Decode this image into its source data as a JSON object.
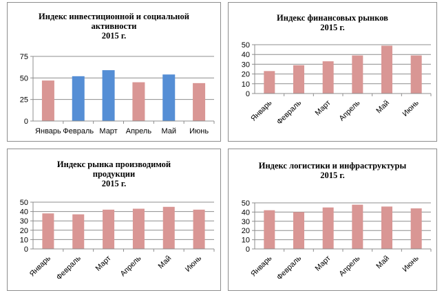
{
  "chart_data": [
    {
      "type": "bar",
      "title": [
        "Индекс инвестиционной и социальной",
        "активности",
        "2015 г."
      ],
      "categories": [
        "Январь",
        "Февраль",
        "Март",
        "Апрель",
        "Май",
        "Июнь"
      ],
      "values": [
        47,
        52,
        59,
        45,
        54,
        44
      ],
      "bar_colors": [
        "#d99694",
        "#558ed5",
        "#558ed5",
        "#d99694",
        "#558ed5",
        "#d99694"
      ],
      "ylim": [
        0,
        75
      ],
      "yticks": [
        "0",
        "25",
        "50",
        "75"
      ],
      "xlabel": "",
      "ylabel": "",
      "grid": true,
      "label_rotation": 0
    },
    {
      "type": "bar",
      "title": [
        "Индекс финансовых рынков",
        "2015 г."
      ],
      "categories": [
        "Январь",
        "Февраль",
        "Март",
        "Апрель",
        "Май",
        "Июнь"
      ],
      "values": [
        23,
        29,
        33,
        39,
        49,
        39
      ],
      "bar_colors": [
        "#d99694",
        "#d99694",
        "#d99694",
        "#d99694",
        "#d99694",
        "#d99694"
      ],
      "ylim": [
        0,
        50
      ],
      "yticks": [
        "0",
        "10",
        "20",
        "30",
        "40",
        "50"
      ],
      "xlabel": "",
      "ylabel": "",
      "grid": true,
      "label_rotation": -45
    },
    {
      "type": "bar",
      "title": [
        "Индекс рынка производимой",
        "продукции",
        "2015 г."
      ],
      "categories": [
        "Январь",
        "Февраль",
        "Март",
        "Апрель",
        "Май",
        "Июнь"
      ],
      "values": [
        38,
        37,
        42,
        43,
        45,
        42
      ],
      "bar_colors": [
        "#d99694",
        "#d99694",
        "#d99694",
        "#d99694",
        "#d99694",
        "#d99694"
      ],
      "ylim": [
        0,
        50
      ],
      "yticks": [
        "0",
        "10",
        "20",
        "30",
        "40",
        "50"
      ],
      "xlabel": "",
      "ylabel": "",
      "grid": true,
      "label_rotation": -45
    },
    {
      "type": "bar",
      "title": [
        "Индекс логистики и инфраструктуры",
        "2015 г."
      ],
      "categories": [
        "Январь",
        "Февраль",
        "Март",
        "Апрель",
        "Май",
        "Июнь"
      ],
      "values": [
        42,
        40,
        45,
        48,
        46,
        44
      ],
      "bar_colors": [
        "#d99694",
        "#d99694",
        "#d99694",
        "#d99694",
        "#d99694",
        "#d99694"
      ],
      "ylim": [
        0,
        50
      ],
      "yticks": [
        "0",
        "10",
        "20",
        "30",
        "40",
        "50"
      ],
      "xlabel": "",
      "ylabel": "",
      "grid": true,
      "label_rotation": -45
    }
  ],
  "colors": {
    "grid": "#8c8c8c",
    "axis": "#8c8c8c"
  }
}
